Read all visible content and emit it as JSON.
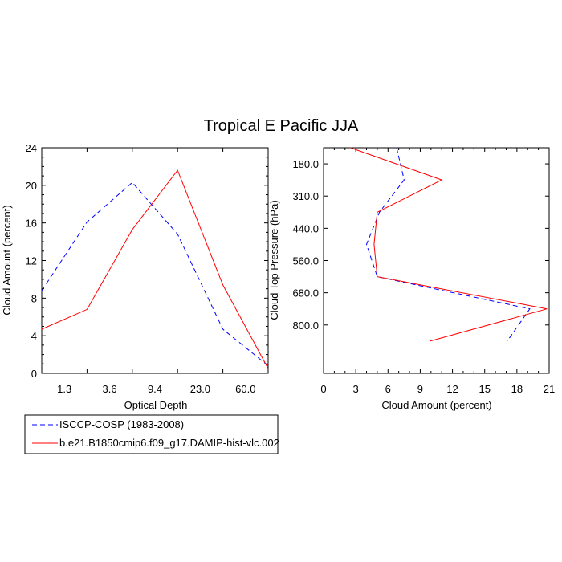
{
  "title": "Tropical E Pacific JJA",
  "legend": [
    {
      "label": "ISCCP-COSP (1983-2008)",
      "color": "#0000ff",
      "dash": true
    },
    {
      "label": "b.e21.B1850cmip6.f09_g17.DAMIP-hist-vlc.002",
      "color": "#ff0000",
      "dash": false
    }
  ],
  "chart_data": [
    {
      "type": "line",
      "xlabel": "Optical Depth",
      "ylabel": "Cloud Amount (percent)",
      "xlim": [
        0,
        5
      ],
      "ylim": [
        0,
        24
      ],
      "xtick_values": [
        0.5,
        1.5,
        2.5,
        3.5,
        4.5
      ],
      "xtick_labels": [
        "1.3",
        "3.6",
        "9.4",
        "23.0",
        "60.0"
      ],
      "ytick_values": [
        0,
        4,
        8,
        12,
        16,
        20,
        24
      ],
      "ytick_labels": [
        "0",
        "4",
        "8",
        "12",
        "16",
        "20",
        "24"
      ],
      "series": [
        {
          "name": "ISCCP-COSP (1983-2008)",
          "x": [
            0,
            1,
            2,
            3,
            4,
            5
          ],
          "y": [
            8.8,
            16.1,
            20.3,
            14.8,
            4.7,
            0.8
          ]
        },
        {
          "name": "b.e21.B1850cmip6.f09_g17.DAMIP-hist-vlc.002",
          "x": [
            0,
            1,
            2,
            3,
            4,
            5
          ],
          "y": [
            4.7,
            6.8,
            15.3,
            21.6,
            9.4,
            0.5
          ]
        }
      ]
    },
    {
      "type": "line",
      "xlabel": "Cloud Amount (percent)",
      "ylabel": "Cloud Top Pressure (hPa)",
      "xlim": [
        0,
        21
      ],
      "ylim": [
        0,
        7
      ],
      "xtick_values": [
        0,
        3,
        6,
        9,
        12,
        15,
        18,
        21
      ],
      "xtick_labels": [
        "0",
        "3",
        "6",
        "9",
        "12",
        "15",
        "18",
        "21"
      ],
      "ytick_values": [
        0.5,
        1.5,
        2.5,
        3.5,
        4.5,
        5.5
      ],
      "ytick_labels": [
        "180.0",
        "310.0",
        "440.0",
        "560.0",
        "680.0",
        "800.0"
      ],
      "series": [
        {
          "name": "ISCCP-COSP (1983-2008)",
          "x": [
            6.8,
            7.5,
            5.2,
            4.0,
            5.0,
            19.2,
            17.1
          ],
          "y": [
            0,
            1,
            2,
            3,
            4,
            5,
            6
          ]
        },
        {
          "name": "b.e21.B1850cmip6.f09_g17.DAMIP-hist-vlc.002",
          "x": [
            2.5,
            11.0,
            5.0,
            4.7,
            5.0,
            20.8,
            9.9
          ],
          "y": [
            0,
            1,
            2,
            3,
            4,
            5,
            6
          ]
        }
      ]
    }
  ]
}
